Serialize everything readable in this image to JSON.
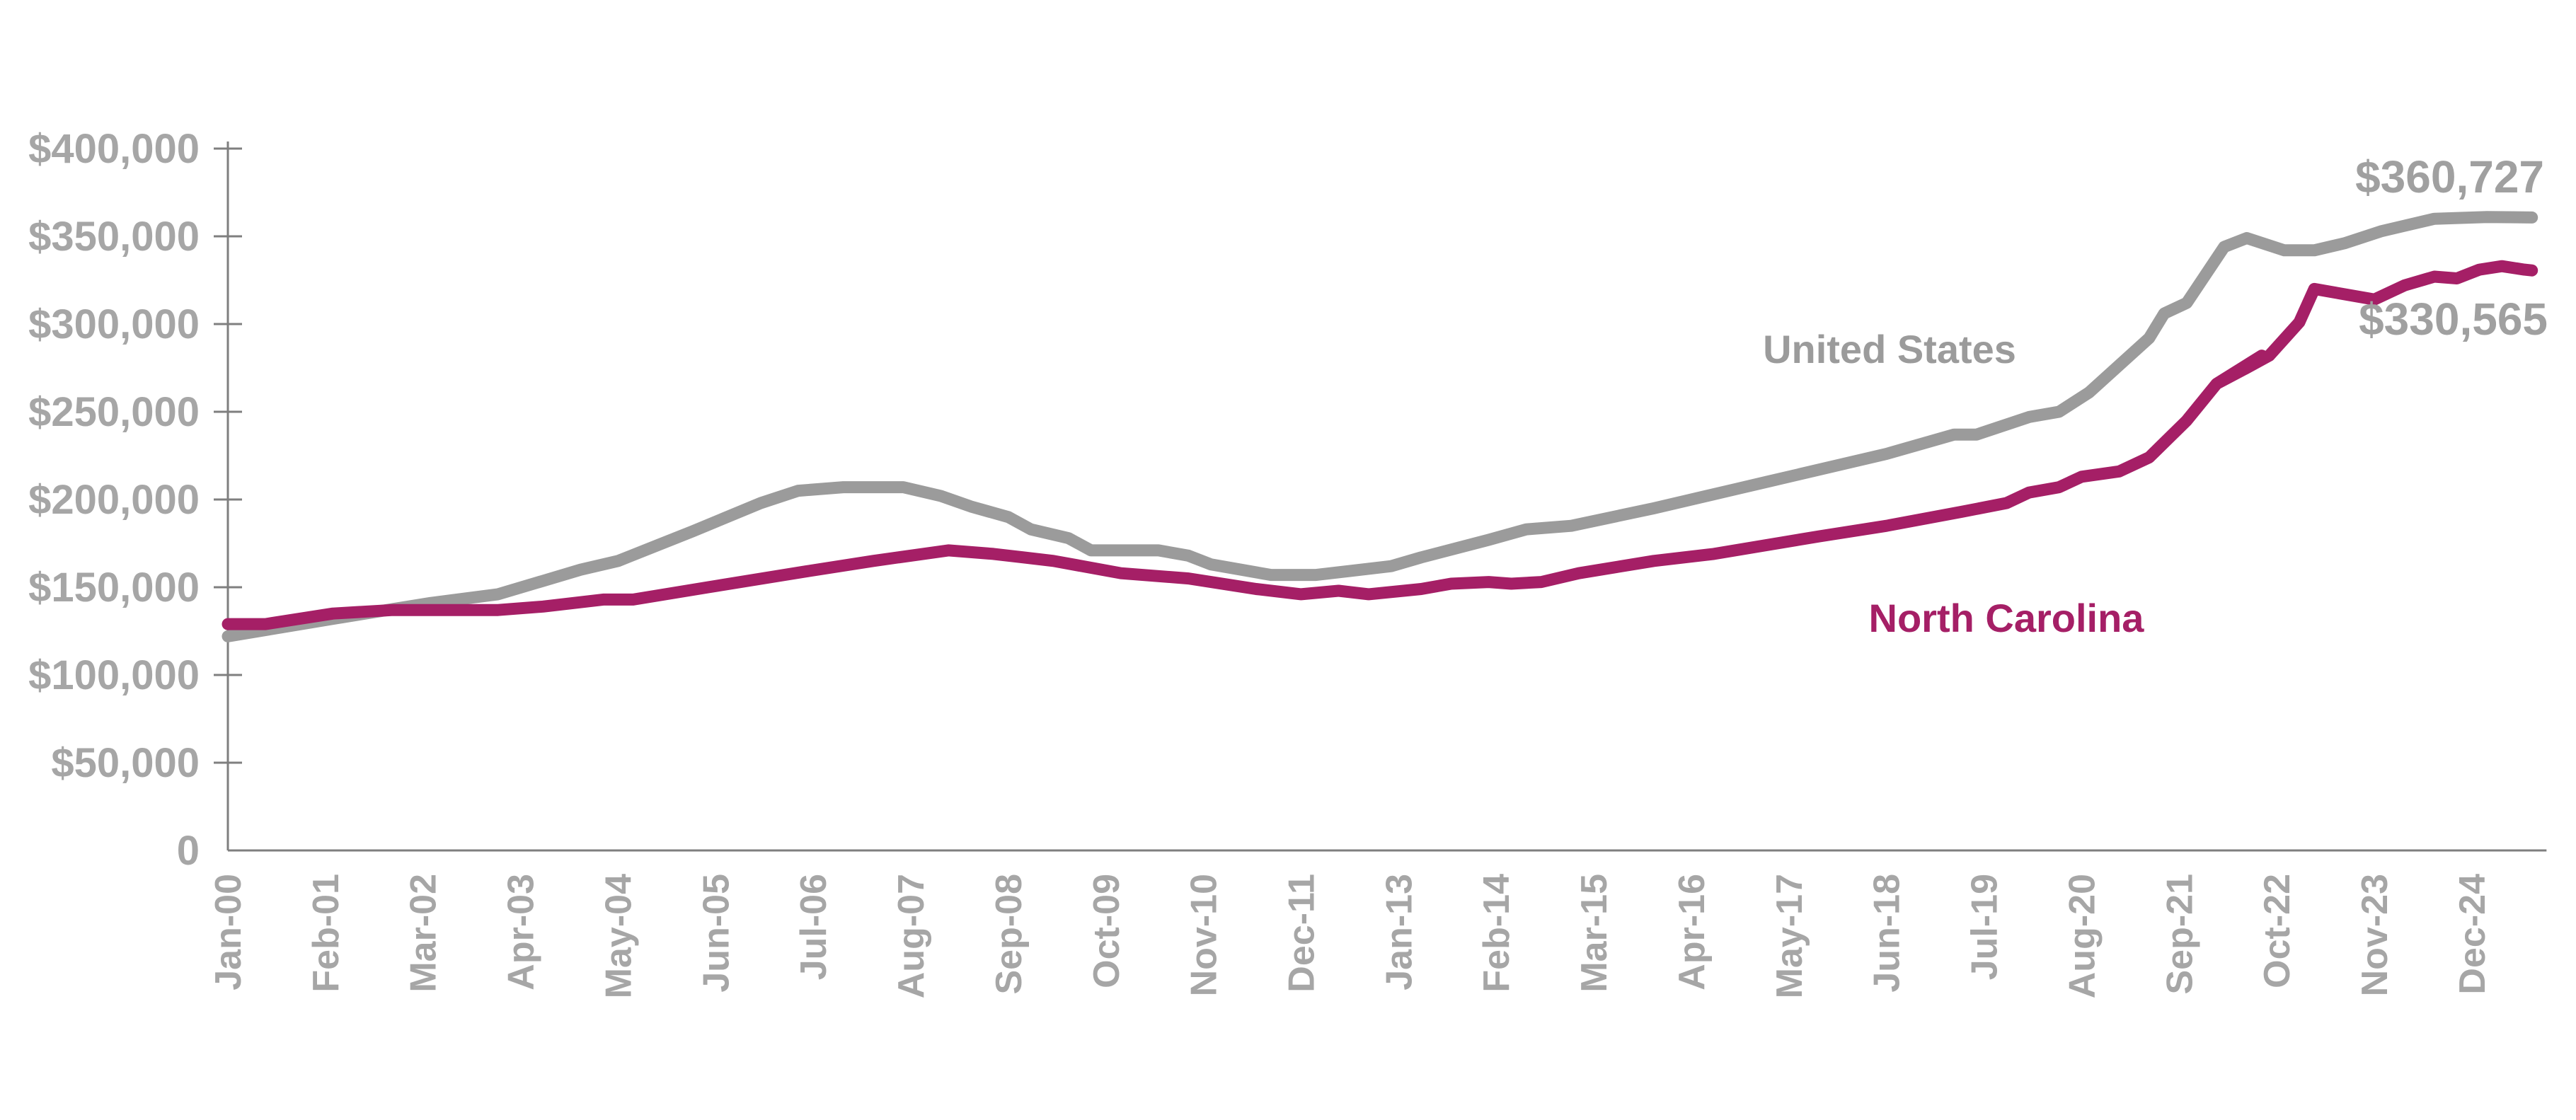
{
  "chart_data": {
    "type": "line",
    "title": "",
    "xlabel": "",
    "ylabel": "",
    "x_unit": "months since Jan 2000",
    "ylim": [
      0,
      400000
    ],
    "yticks": [
      0,
      50000,
      100000,
      150000,
      200000,
      250000,
      300000,
      350000,
      400000
    ],
    "ytick_labels": [
      "0",
      "$50,000",
      "$100,000",
      "$150,000",
      "$200,000",
      "$250,000",
      "$300,000",
      "$350,000",
      "$400,000"
    ],
    "xtick_labels": [
      "Jan-00",
      "Feb-01",
      "Mar-02",
      "Apr-03",
      "May-04",
      "Jun-05",
      "Jul-06",
      "Aug-07",
      "Sep-08",
      "Oct-09",
      "Nov-10",
      "Dec-11",
      "Jan-13",
      "Feb-14",
      "Mar-15",
      "Apr-16",
      "May-17",
      "Jun-18",
      "Jul-19",
      "Aug-20",
      "Sep-21",
      "Oct-22",
      "Nov-23",
      "Dec-24"
    ],
    "xtick_step_months": 13,
    "xlim": [
      0,
      308
    ],
    "grid": false,
    "series": [
      {
        "name": "United States",
        "color": "#9b9b9b",
        "end_label": "$360,727",
        "points": [
          [
            0,
            122000
          ],
          [
            14,
            132000
          ],
          [
            27,
            141000
          ],
          [
            36,
            146000
          ],
          [
            47,
            160000
          ],
          [
            52,
            165000
          ],
          [
            62,
            182000
          ],
          [
            71,
            198000
          ],
          [
            76,
            205000
          ],
          [
            82,
            207000
          ],
          [
            90,
            207000
          ],
          [
            95,
            202000
          ],
          [
            99,
            196000
          ],
          [
            104,
            190000
          ],
          [
            107,
            183000
          ],
          [
            112,
            178000
          ],
          [
            115,
            171000
          ],
          [
            124,
            171000
          ],
          [
            128,
            168000
          ],
          [
            131,
            163000
          ],
          [
            139,
            157000
          ],
          [
            145,
            157000
          ],
          [
            155,
            162000
          ],
          [
            159,
            167000
          ],
          [
            168,
            177000
          ],
          [
            173,
            183000
          ],
          [
            179,
            185000
          ],
          [
            190,
            195000
          ],
          [
            201,
            206000
          ],
          [
            205,
            210000
          ],
          [
            221,
            226000
          ],
          [
            230,
            237000
          ],
          [
            233,
            237000
          ],
          [
            240,
            247000
          ],
          [
            244,
            250000
          ],
          [
            248,
            261000
          ],
          [
            256,
            292000
          ],
          [
            258,
            306000
          ],
          [
            261,
            312000
          ],
          [
            266,
            344000
          ],
          [
            269,
            349000
          ],
          [
            274,
            342000
          ],
          [
            278,
            342000
          ],
          [
            282,
            346000
          ],
          [
            287,
            353000
          ],
          [
            290,
            356000
          ],
          [
            294,
            360000
          ],
          [
            301,
            361000
          ],
          [
            307,
            360727
          ]
        ]
      },
      {
        "name": "North Carolina",
        "color": "#a51f66",
        "end_label": "$330,565",
        "points": [
          [
            0,
            129000
          ],
          [
            5,
            129000
          ],
          [
            14,
            135000
          ],
          [
            22,
            137000
          ],
          [
            36,
            137000
          ],
          [
            42,
            139000
          ],
          [
            50,
            143000
          ],
          [
            54,
            143000
          ],
          [
            64,
            150000
          ],
          [
            77,
            159000
          ],
          [
            86,
            165000
          ],
          [
            96,
            171000
          ],
          [
            102,
            169000
          ],
          [
            106,
            167000
          ],
          [
            110,
            165000
          ],
          [
            119,
            158000
          ],
          [
            128,
            155000
          ],
          [
            137,
            149000
          ],
          [
            143,
            146000
          ],
          [
            148,
            148000
          ],
          [
            152,
            146000
          ],
          [
            159,
            149000
          ],
          [
            163,
            152000
          ],
          [
            168,
            153000
          ],
          [
            171,
            152000
          ],
          [
            175,
            153000
          ],
          [
            180,
            158000
          ],
          [
            190,
            165000
          ],
          [
            198,
            169000
          ],
          [
            205,
            174000
          ],
          [
            212,
            179000
          ],
          [
            221,
            185000
          ],
          [
            231,
            193000
          ],
          [
            237,
            198000
          ],
          [
            240,
            204000
          ],
          [
            244,
            207000
          ],
          [
            247,
            213000
          ],
          [
            252,
            216000
          ],
          [
            256,
            224000
          ],
          [
            261,
            245000
          ],
          [
            265,
            266000
          ],
          [
            271,
            282000
          ],
          [
            265,
            266000
          ],
          [
            269,
            275000
          ],
          [
            272,
            282000
          ],
          [
            276,
            301000
          ],
          [
            278,
            320000
          ],
          [
            286,
            314000
          ],
          [
            290,
            322000
          ],
          [
            294,
            327000
          ],
          [
            297,
            326000
          ],
          [
            300,
            331000
          ],
          [
            303,
            333000
          ],
          [
            306,
            331000
          ],
          [
            307,
            330565
          ]
        ]
      }
    ]
  }
}
